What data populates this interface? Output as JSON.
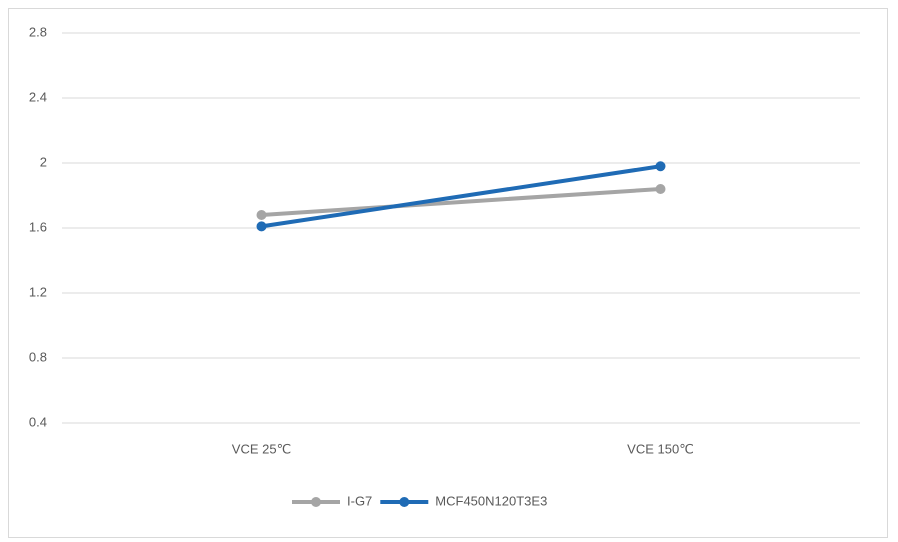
{
  "chart_data": {
    "type": "line",
    "categories": [
      "VCE 25℃",
      "VCE 150℃"
    ],
    "series": [
      {
        "name": "I-G7",
        "color": "#a5a5a5",
        "values": [
          1.68,
          1.84
        ]
      },
      {
        "name": "MCF450N120T3E3",
        "color": "#1f6bb5",
        "values": [
          1.61,
          1.98
        ]
      }
    ],
    "ylim": [
      0.4,
      2.8
    ],
    "yticks": [
      0.4,
      0.8,
      1.2,
      1.6,
      2,
      2.4,
      2.8
    ],
    "grid": true,
    "legend": "bottom"
  }
}
